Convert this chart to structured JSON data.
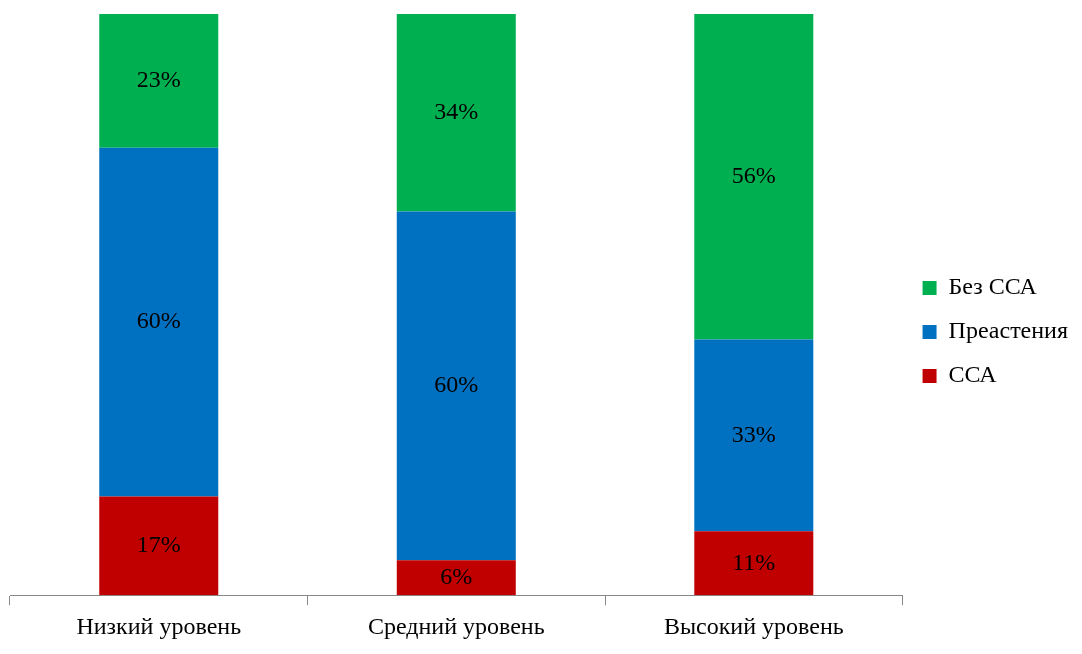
{
  "chart_data": {
    "type": "bar",
    "stacked": true,
    "categories": [
      "Низкий уровень",
      "Средний уровень",
      "Высокий уровень"
    ],
    "ylim": [
      0,
      100
    ],
    "legend": "right",
    "grid": false,
    "series": [
      {
        "name": "ССА",
        "color": "#c00000",
        "values": [
          17,
          6,
          11
        ],
        "value_labels": [
          "17%",
          "6%",
          "11%"
        ]
      },
      {
        "name": "Преастения",
        "color": "#0070c0",
        "values": [
          60,
          60,
          33
        ],
        "value_labels": [
          "60%",
          "60%",
          "33%"
        ]
      },
      {
        "name": "Без ССА",
        "color": "#00b050",
        "values": [
          23,
          34,
          56
        ],
        "value_labels": [
          "23%",
          "34%",
          "56%"
        ]
      }
    ]
  }
}
